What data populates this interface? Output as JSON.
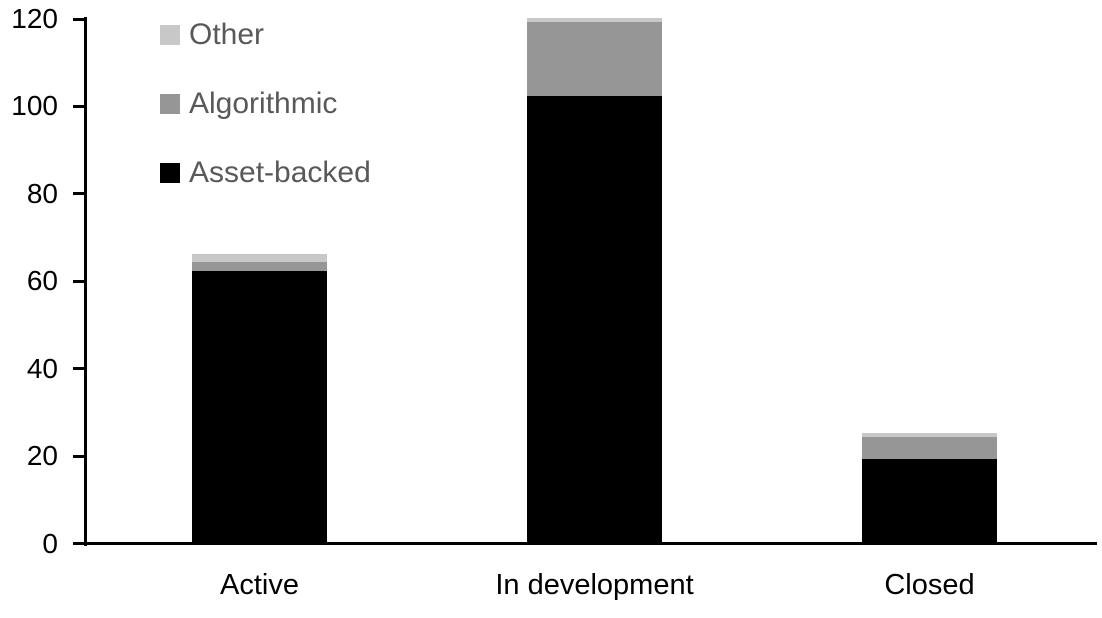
{
  "chart_data": {
    "type": "bar",
    "stacked": true,
    "title": "",
    "xlabel": "",
    "ylabel": "",
    "categories": [
      "Active",
      "In development",
      "Closed"
    ],
    "series": [
      {
        "name": "Asset-backed",
        "color": "#000000",
        "values": [
          62,
          102,
          19
        ]
      },
      {
        "name": "Algorithmic",
        "color": "#969696",
        "values": [
          2,
          17,
          5
        ]
      },
      {
        "name": "Other",
        "color": "#c8c8c8",
        "values": [
          2,
          1,
          1
        ]
      }
    ],
    "totals": [
      66,
      120,
      25
    ],
    "ylim": [
      0,
      120
    ],
    "ytick_step": 20,
    "ytick_labels": [
      "0",
      "20",
      "40",
      "60",
      "80",
      "100",
      "120"
    ],
    "grid": false,
    "legend_position": "top-left",
    "legend_order": [
      "Other",
      "Algorithmic",
      "Asset-backed"
    ]
  },
  "colors": {
    "background": "#ffffff",
    "axis_line": "#000000",
    "tick_label": "#000000",
    "category_label": "#000000",
    "legend_text": "#595959"
  }
}
